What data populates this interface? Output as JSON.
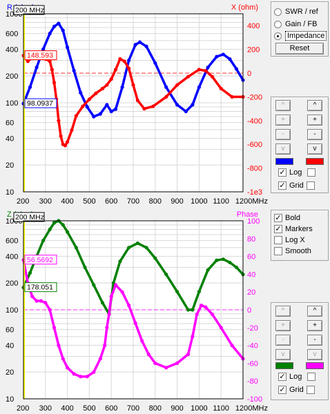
{
  "mode_panel": {
    "options": [
      {
        "label": "SWR / ref",
        "selected": false
      },
      {
        "label": "Gain / FB",
        "selected": false
      },
      {
        "label": "Impedance",
        "selected": true
      }
    ],
    "reset_label": "Reset"
  },
  "top_controls": {
    "arrows": [
      "^",
      "^",
      "+",
      "+",
      "-",
      "-",
      "v",
      "v"
    ],
    "swatch_left": "#0000ff",
    "swatch_right": "#ff0000",
    "log_label": "Log",
    "log_checked": true,
    "log_right_checked": false,
    "grid_label": "Grid",
    "grid_checked": true,
    "grid_right_checked": false
  },
  "options_panel": {
    "items": [
      {
        "label": "Bold",
        "checked": true
      },
      {
        "label": "Markers",
        "checked": true
      },
      {
        "label": "Log X",
        "checked": false
      },
      {
        "label": "Smooth",
        "checked": false
      }
    ]
  },
  "bottom_controls": {
    "arrows": [
      "^",
      "^",
      "+",
      "+",
      "-",
      "-",
      "v",
      "v"
    ],
    "swatch_left": "#008000",
    "swatch_right": "#ff00ff",
    "log_label": "Log",
    "log_checked": true,
    "log_right_checked": false,
    "grid_label": "Grid",
    "grid_checked": true,
    "grid_right_checked": false
  },
  "chart_data": [
    {
      "type": "line",
      "left_axis_title": "R (ohm)",
      "right_axis_title": "X (ohm)",
      "x_ticks": [
        "200",
        "300",
        "400",
        "500",
        "600",
        "700",
        "800",
        "900",
        "1000",
        "1100",
        "1200MHz"
      ],
      "x_range": [
        200,
        1200
      ],
      "left_axis": {
        "scale": "log",
        "range": [
          10,
          1000
        ],
        "tick_labels": [
          "1000",
          "600",
          "400",
          "200",
          "100",
          "60",
          "40",
          "20",
          "10"
        ]
      },
      "right_axis": {
        "scale": "linear",
        "range": [
          -1000,
          500
        ],
        "tick_labels": [
          "400",
          "200",
          "0",
          "-200",
          "-400",
          "-600",
          "-800",
          "-1e3"
        ]
      },
      "cursor_label": "200 MHz",
      "readout_right": "148.593",
      "readout_left": "98.0937",
      "series": [
        {
          "name": "R",
          "axis": "left",
          "color": "#0000ff",
          "x": [
            200,
            230,
            260,
            290,
            320,
            340,
            360,
            380,
            400,
            430,
            460,
            490,
            520,
            550,
            580,
            600,
            620,
            650,
            680,
            710,
            730,
            760,
            800,
            850,
            900,
            940,
            970,
            1000,
            1040,
            1080,
            1110,
            1140,
            1170,
            1200
          ],
          "y": [
            98,
            150,
            250,
            400,
            600,
            720,
            780,
            650,
            420,
            230,
            130,
            90,
            70,
            75,
            95,
            80,
            85,
            150,
            300,
            450,
            480,
            430,
            280,
            150,
            95,
            80,
            95,
            150,
            250,
            330,
            350,
            310,
            240,
            180
          ]
        },
        {
          "name": "X",
          "axis": "right",
          "color": "#ff0000",
          "x": [
            200,
            220,
            240,
            260,
            280,
            300,
            320,
            330,
            340,
            350,
            360,
            370,
            380,
            390,
            400,
            420,
            440,
            470,
            500,
            530,
            560,
            580,
            600,
            620,
            640,
            660,
            680,
            700,
            720,
            750,
            790,
            850,
            900,
            950,
            1000,
            1030,
            1060,
            1100,
            1150,
            1200
          ],
          "y": [
            148,
            100,
            130,
            150,
            140,
            120,
            100,
            30,
            -80,
            -220,
            -400,
            -530,
            -600,
            -610,
            -580,
            -480,
            -360,
            -280,
            -220,
            -170,
            -130,
            -100,
            -50,
            30,
            120,
            100,
            40,
            -100,
            -230,
            -300,
            -280,
            -200,
            -100,
            -30,
            30,
            20,
            -30,
            -130,
            -200,
            -200
          ]
        }
      ]
    },
    {
      "type": "line",
      "left_axis_title": "Z (ohm)",
      "right_axis_title": "Phase",
      "x_ticks": [
        "200",
        "300",
        "400",
        "500",
        "600",
        "700",
        "800",
        "900",
        "1000",
        "1100",
        "1200MHz"
      ],
      "x_range": [
        200,
        1200
      ],
      "left_axis": {
        "scale": "log",
        "range": [
          10,
          1000
        ],
        "tick_labels": [
          "1000",
          "600",
          "400",
          "200",
          "100",
          "60",
          "40",
          "20",
          "10"
        ]
      },
      "right_axis": {
        "scale": "linear",
        "range": [
          -100,
          100
        ],
        "tick_labels": [
          "100",
          "80",
          "60",
          "40",
          "20",
          "0",
          "-20",
          "-40",
          "-60",
          "-80",
          "-100"
        ]
      },
      "cursor_label": "200 MHz",
      "readout_right": "56.5692",
      "readout_left": "178.051",
      "series": [
        {
          "name": "Z",
          "axis": "left",
          "color": "#008000",
          "x": [
            200,
            230,
            260,
            290,
            320,
            340,
            360,
            380,
            400,
            440,
            480,
            520,
            560,
            590,
            610,
            640,
            680,
            720,
            760,
            800,
            850,
            900,
            950,
            970,
            1000,
            1040,
            1080,
            1110,
            1140,
            1170,
            1200
          ],
          "y": [
            178,
            260,
            400,
            600,
            800,
            950,
            1000,
            900,
            750,
            500,
            300,
            190,
            120,
            90,
            200,
            350,
            500,
            560,
            500,
            380,
            250,
            160,
            100,
            100,
            160,
            280,
            360,
            370,
            340,
            300,
            250
          ]
        },
        {
          "name": "Phase",
          "axis": "right",
          "color": "#ff00ff",
          "x": [
            200,
            220,
            240,
            260,
            280,
            300,
            320,
            340,
            360,
            380,
            400,
            430,
            460,
            490,
            520,
            550,
            570,
            580,
            590,
            600,
            620,
            650,
            680,
            710,
            740,
            770,
            800,
            850,
            900,
            950,
            970,
            990,
            1010,
            1030,
            1060,
            1100,
            1150,
            1200
          ],
          "y": [
            56,
            30,
            15,
            10,
            10,
            8,
            0,
            -20,
            -40,
            -55,
            -65,
            -72,
            -75,
            -75,
            -70,
            -55,
            -40,
            -20,
            -5,
            15,
            28,
            20,
            5,
            -15,
            -35,
            -50,
            -60,
            -65,
            -60,
            -50,
            -30,
            -5,
            5,
            3,
            -5,
            -20,
            -40,
            -55
          ]
        }
      ]
    }
  ]
}
